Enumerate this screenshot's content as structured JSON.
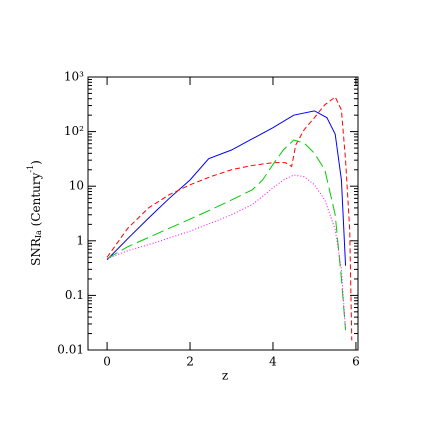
{
  "chart_data": {
    "type": "line",
    "x_label": "z",
    "y_label": {
      "main": "SNR",
      "sub": "Ia",
      "open": " (Century",
      "sup": "-1",
      "close": ")"
    },
    "xlim": [
      -0.46,
      6.05
    ],
    "ylim": [
      0.01,
      1000
    ],
    "log_y": true,
    "minor_ticks": true,
    "xticks": [
      0,
      2,
      4,
      6
    ],
    "yticks": [
      0.01,
      0.1,
      1,
      10,
      {
        "value": 100,
        "label": "10²"
      },
      {
        "value": 1000,
        "label": "10³"
      }
    ],
    "series": [
      {
        "color": "#0000ff",
        "linestyle": "solid",
        "x": [
          0,
          0.5,
          1,
          1.5,
          2,
          2.45,
          3,
          4,
          4.5,
          5,
          5.3,
          5.5,
          5.65,
          5.75
        ],
        "values": [
          0.45,
          1.1,
          2.6,
          6,
          13,
          32,
          46,
          118,
          200,
          240,
          180,
          90,
          13,
          0.35
        ]
      },
      {
        "color": "#ff0000",
        "linestyle": "dashed",
        "x": [
          0,
          0.5,
          1,
          1.5,
          2,
          2.5,
          3,
          3.5,
          4,
          4.3,
          4.45,
          4.55,
          4.75,
          5,
          5.25,
          5.5,
          5.65,
          5.75,
          5.85,
          5.9
        ],
        "values": [
          0.5,
          1.7,
          4,
          7,
          10.6,
          15,
          20,
          24,
          27,
          27,
          23,
          57,
          108,
          180,
          310,
          430,
          250,
          30,
          1.6,
          0.015
        ]
      },
      {
        "color": "#00cc00",
        "linestyle": "longdash",
        "x": [
          0,
          0.5,
          1,
          1.5,
          2,
          2.5,
          3,
          3.5,
          3.75,
          4,
          4.25,
          4.5,
          4.75,
          5,
          5.25,
          5.5,
          5.65,
          5.75
        ],
        "values": [
          0.47,
          0.78,
          1.15,
          1.7,
          2.5,
          3.7,
          5.6,
          8.6,
          13,
          25,
          46,
          70,
          62,
          40,
          20,
          3,
          0.2,
          0.023
        ]
      },
      {
        "color": "#ff00ff",
        "linestyle": "dotted",
        "x": [
          0,
          0.5,
          1,
          1.5,
          2,
          2.5,
          3,
          3.5,
          4,
          4.25,
          4.5,
          4.75,
          5,
          5.25,
          5.5,
          5.65,
          5.75
        ],
        "values": [
          0.47,
          0.66,
          0.85,
          1.13,
          1.5,
          2.1,
          3,
          4.6,
          9.3,
          13,
          16,
          15,
          10.6,
          5.6,
          1.6,
          0.3,
          0.023
        ]
      }
    ]
  }
}
